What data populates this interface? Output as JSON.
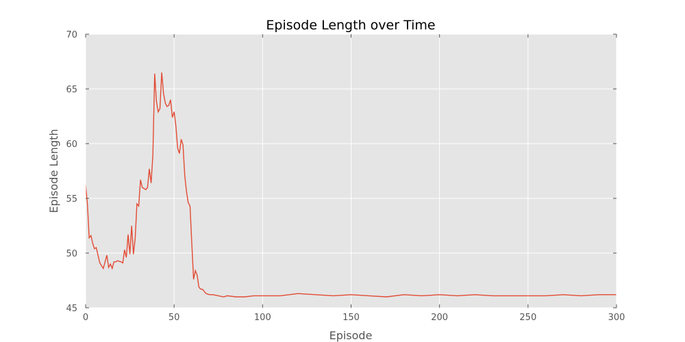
{
  "chart_data": {
    "type": "line",
    "title": "Episode Length over Time",
    "xlabel": "Episode",
    "ylabel": "Episode Length",
    "xlim": [
      0,
      300
    ],
    "ylim": [
      45,
      70
    ],
    "x_ticks": [
      "0",
      "50",
      "100",
      "150",
      "200",
      "250",
      "300"
    ],
    "y_ticks": [
      "45",
      "50",
      "55",
      "60",
      "65",
      "70"
    ],
    "grid": true,
    "background": "#e5e5e5",
    "line_color": "#e24a33",
    "series": [
      {
        "x": [
          0,
          1,
          2,
          3,
          4,
          5,
          6,
          7,
          8,
          10,
          11,
          12,
          13,
          14,
          15,
          16,
          17,
          18,
          20,
          21,
          22,
          23,
          24,
          25,
          26,
          27,
          28,
          29,
          30,
          31,
          32,
          33,
          34,
          35,
          36,
          37,
          38,
          39,
          40,
          41,
          42,
          43,
          44,
          45,
          46,
          47,
          48,
          49,
          50,
          51,
          52,
          53,
          54,
          55,
          56,
          57,
          58,
          59,
          60,
          61,
          62,
          63,
          64,
          65,
          66,
          68,
          70,
          72,
          75,
          78,
          80,
          85,
          90,
          95,
          100,
          110,
          120,
          130,
          140,
          150,
          160,
          170,
          180,
          190,
          200,
          210,
          220,
          230,
          240,
          250,
          260,
          270,
          280,
          290,
          300
        ],
        "values": [
          56.2,
          54.5,
          51.4,
          51.6,
          50.9,
          50.4,
          50.5,
          49.8,
          49.1,
          48.6,
          49.2,
          49.8,
          48.7,
          49.0,
          48.6,
          49.2,
          49.2,
          49.3,
          49.2,
          49.1,
          50.3,
          49.6,
          51.7,
          49.9,
          52.5,
          49.9,
          51.3,
          54.5,
          54.3,
          56.7,
          56.0,
          55.9,
          55.8,
          56.0,
          57.7,
          56.4,
          59.0,
          66.4,
          63.9,
          62.9,
          63.2,
          66.5,
          64.6,
          63.7,
          63.4,
          63.5,
          64.0,
          62.4,
          62.9,
          61.6,
          59.6,
          59.1,
          60.4,
          59.9,
          57.1,
          55.6,
          54.6,
          54.3,
          50.9,
          47.6,
          48.4,
          48.0,
          46.9,
          46.7,
          46.7,
          46.3,
          46.2,
          46.2,
          46.1,
          46.0,
          46.1,
          46.0,
          46.0,
          46.1,
          46.1,
          46.1,
          46.3,
          46.2,
          46.1,
          46.2,
          46.1,
          46.0,
          46.2,
          46.1,
          46.2,
          46.1,
          46.2,
          46.1,
          46.1,
          46.1,
          46.1,
          46.2,
          46.1,
          46.2,
          46.2
        ]
      }
    ]
  }
}
